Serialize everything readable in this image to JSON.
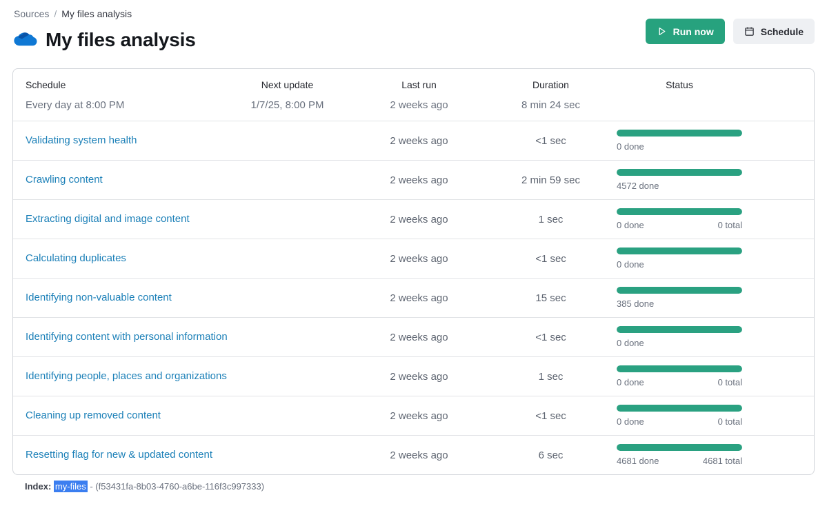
{
  "breadcrumb": {
    "root": "Sources",
    "separator": "/",
    "current": "My files analysis"
  },
  "page": {
    "title": "My files analysis",
    "source_icon": "onedrive-cloud-icon"
  },
  "actions": {
    "run_now_label": "Run now",
    "run_now_icon": "play-icon",
    "schedule_label": "Schedule",
    "schedule_icon": "calendar-icon"
  },
  "table": {
    "columns": [
      "Schedule",
      "Next update",
      "Last run",
      "Duration",
      "Status"
    ],
    "summary": {
      "schedule": "Every day at 8:00 PM",
      "next_update": "1/7/25, 8:00 PM",
      "last_run": "2 weeks ago",
      "duration": "8 min 24 sec"
    },
    "rows": [
      {
        "name": "Validating system health",
        "last_run": "2 weeks ago",
        "duration": "<1 sec",
        "progress": 100,
        "done": "0 done",
        "total": ""
      },
      {
        "name": "Crawling content",
        "last_run": "2 weeks ago",
        "duration": "2 min 59 sec",
        "progress": 100,
        "done": "4572 done",
        "total": ""
      },
      {
        "name": "Extracting digital and image content",
        "last_run": "2 weeks ago",
        "duration": "1 sec",
        "progress": 100,
        "done": "0 done",
        "total": "0 total"
      },
      {
        "name": "Calculating duplicates",
        "last_run": "2 weeks ago",
        "duration": "<1 sec",
        "progress": 100,
        "done": "0 done",
        "total": ""
      },
      {
        "name": "Identifying non-valuable content",
        "last_run": "2 weeks ago",
        "duration": "15 sec",
        "progress": 100,
        "done": "385 done",
        "total": ""
      },
      {
        "name": "Identifying content with personal information",
        "last_run": "2 weeks ago",
        "duration": "<1 sec",
        "progress": 100,
        "done": "0 done",
        "total": ""
      },
      {
        "name": "Identifying people, places and organizations",
        "last_run": "2 weeks ago",
        "duration": "1 sec",
        "progress": 100,
        "done": "0 done",
        "total": "0 total"
      },
      {
        "name": "Cleaning up removed content",
        "last_run": "2 weeks ago",
        "duration": "<1 sec",
        "progress": 100,
        "done": "0 done",
        "total": "0 total"
      },
      {
        "name": "Resetting flag for new & updated content",
        "last_run": "2 weeks ago",
        "duration": "6 sec",
        "progress": 100,
        "done": "4681 done",
        "total": "4681 total"
      }
    ]
  },
  "footer": {
    "label": "Index:",
    "index_name": "my-files",
    "uuid_part": "- (f53431fa-8b03-4760-a6be-116f3c997333)"
  },
  "colors": {
    "accent_green": "#27a27e",
    "progress_green": "#2aa181",
    "link_blue": "#1c80b8",
    "selection_blue": "#3b7ef0"
  }
}
